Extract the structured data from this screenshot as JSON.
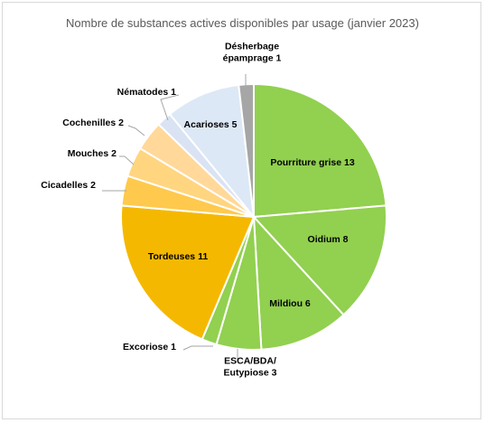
{
  "chart_data": {
    "type": "pie",
    "title": "Nombre de substances actives disponibles par usage (janvier 2023)",
    "slices": [
      {
        "label": [
          "Pourriture grise  13"
        ],
        "value": 13,
        "color": "#92d050"
      },
      {
        "label": [
          "Oidium 8"
        ],
        "value": 8,
        "color": "#92d050"
      },
      {
        "label": [
          "Mildiou 6"
        ],
        "value": 6,
        "color": "#92d050"
      },
      {
        "label": [
          "ESCA/BDA/",
          "Eutypiose 3"
        ],
        "value": 3,
        "color": "#92d050"
      },
      {
        "label": [
          "Excoriose 1"
        ],
        "value": 1,
        "color": "#92d050"
      },
      {
        "label": [
          "Tordeuses 11"
        ],
        "value": 11,
        "color": "#f5b800"
      },
      {
        "label": [
          "Cicadelles  2"
        ],
        "value": 2,
        "color": "#ffc94d"
      },
      {
        "label": [
          "Mouches 2"
        ],
        "value": 2,
        "color": "#ffd580"
      },
      {
        "label": [
          "Cochenilles 2"
        ],
        "value": 2,
        "color": "#ffd89a"
      },
      {
        "label": [
          "Nématodes 1"
        ],
        "value": 1,
        "color": "#dae3f3"
      },
      {
        "label": [
          "Acarioses 5"
        ],
        "value": 5,
        "color": "#dde8f6"
      },
      {
        "label": [
          "Désherbage",
          "épamprage 1"
        ],
        "value": 1,
        "color": "#a6a6a6"
      }
    ]
  }
}
